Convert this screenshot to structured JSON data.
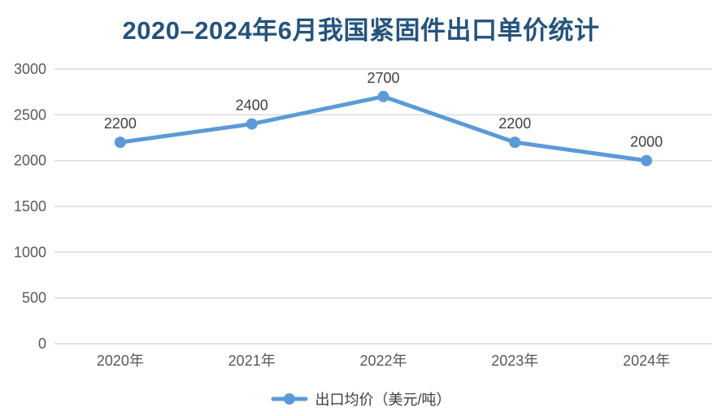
{
  "colors": {
    "title": "#25537C",
    "series": "#5B9BD5",
    "gridline": "#D9D9D9",
    "axis_label": "#595959",
    "data_label": "#404040",
    "background": "#FFFFFF"
  },
  "chart_data": {
    "type": "line",
    "title": "2020–2024年6月我国紧固件出口单价统计",
    "categories": [
      "2020年",
      "2021年",
      "2022年",
      "2023年",
      "2024年"
    ],
    "series": [
      {
        "name": "出口均价（美元/吨）",
        "values": [
          2200,
          2400,
          2700,
          2200,
          2000
        ]
      }
    ],
    "xlabel": "",
    "ylabel": "",
    "ylim": [
      0,
      3000
    ],
    "yticks": [
      0,
      500,
      1000,
      1500,
      2000,
      2500,
      3000
    ],
    "grid": "horizontal-only",
    "legend_position": "bottom",
    "data_labels": true,
    "marker": "circle"
  }
}
